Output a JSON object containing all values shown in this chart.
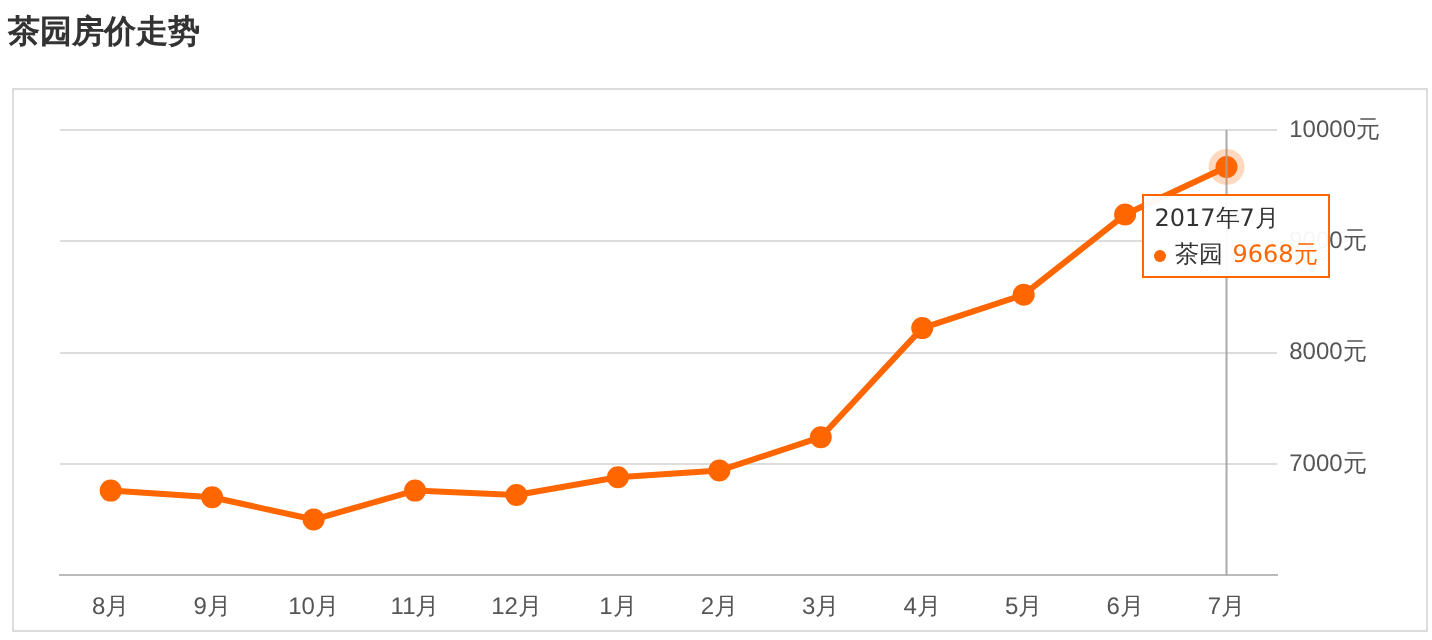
{
  "chart_data": {
    "type": "line",
    "title": "茶园房价走势",
    "categories": [
      "8月",
      "9月",
      "10月",
      "11月",
      "12月",
      "1月",
      "2月",
      "3月",
      "4月",
      "5月",
      "6月",
      "7月"
    ],
    "series": [
      {
        "name": "茶园",
        "color": "#ff6600",
        "values": [
          6760,
          6700,
          6500,
          6760,
          6720,
          6880,
          6940,
          7240,
          8220,
          8520,
          9240,
          9668
        ],
        "value_labels": [
          null,
          null,
          null,
          null,
          null,
          null,
          null,
          null,
          null,
          null,
          null,
          "9668元"
        ]
      }
    ],
    "ylim": [
      6000,
      10000
    ],
    "yticks": [
      {
        "value": 7000,
        "label": "7000元"
      },
      {
        "value": 8000,
        "label": "8000元"
      },
      {
        "value": 9000,
        "label": "9000元"
      },
      {
        "value": 10000,
        "label": "10000元"
      }
    ],
    "grid": "y",
    "legend": "top right",
    "marker": "circle",
    "line_style": "solid",
    "ref_lines": [
      {
        "axis": "x",
        "value": "7月",
        "color": "#aaaaaa"
      }
    ],
    "annotations": [
      {
        "text": "2017年7月",
        "x": "7月",
        "y": 9668
      }
    ]
  }
}
